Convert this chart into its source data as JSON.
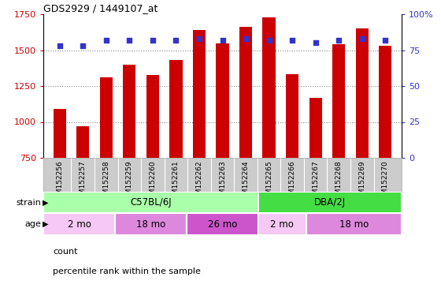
{
  "title": "GDS2929 / 1449107_at",
  "samples": [
    "GSM152256",
    "GSM152257",
    "GSM152258",
    "GSM152259",
    "GSM152260",
    "GSM152261",
    "GSM152262",
    "GSM152263",
    "GSM152264",
    "GSM152265",
    "GSM152266",
    "GSM152267",
    "GSM152268",
    "GSM152269",
    "GSM152270"
  ],
  "counts": [
    1090,
    970,
    1310,
    1400,
    1325,
    1430,
    1640,
    1545,
    1660,
    1730,
    1335,
    1170,
    1540,
    1650,
    1530
  ],
  "percentiles": [
    78,
    78,
    82,
    82,
    82,
    82,
    83,
    82,
    83,
    82,
    82,
    80,
    82,
    83,
    82
  ],
  "ymin": 750,
  "ymax": 1750,
  "yticks": [
    750,
    1000,
    1250,
    1500,
    1750
  ],
  "right_yticks": [
    0,
    25,
    50,
    75,
    100
  ],
  "bar_color": "#cc0000",
  "dot_color": "#3333cc",
  "strain_groups": [
    {
      "label": "C57BL/6J",
      "start": 0,
      "end": 9,
      "color": "#aaffaa"
    },
    {
      "label": "DBA/2J",
      "start": 9,
      "end": 15,
      "color": "#44dd44"
    }
  ],
  "age_groups": [
    {
      "label": "2 mo",
      "start": 0,
      "end": 3,
      "color": "#f5c8f5"
    },
    {
      "label": "18 mo",
      "start": 3,
      "end": 6,
      "color": "#dd88dd"
    },
    {
      "label": "26 mo",
      "start": 6,
      "end": 9,
      "color": "#cc55cc"
    },
    {
      "label": "2 mo",
      "start": 9,
      "end": 11,
      "color": "#f5c8f5"
    },
    {
      "label": "18 mo",
      "start": 11,
      "end": 15,
      "color": "#dd88dd"
    }
  ],
  "grid_color": "#888888",
  "ylabel_left_color": "#cc0000",
  "ylabel_right_color": "#3333cc",
  "label_area_color": "#cccccc",
  "fig_width": 5.6,
  "fig_height": 3.84,
  "dpi": 100
}
